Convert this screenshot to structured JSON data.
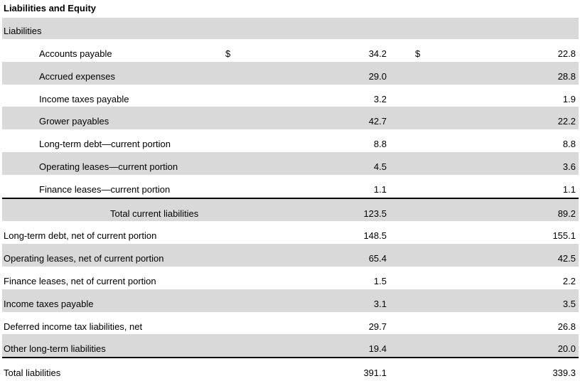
{
  "title": "Liabilities and Equity",
  "section": "Liabilities",
  "rows": [
    {
      "label": "Accounts payable",
      "indent": 1,
      "cur": "$",
      "v1": "34.2",
      "v2": "22.8"
    },
    {
      "label": "Accrued expenses",
      "indent": 1,
      "v1": "29.0",
      "v2": "28.8"
    },
    {
      "label": "Income taxes payable",
      "indent": 1,
      "v1": "3.2",
      "v2": "1.9"
    },
    {
      "label": "Grower payables",
      "indent": 1,
      "v1": "42.7",
      "v2": "22.2"
    },
    {
      "label": "Long-term debt—current portion",
      "indent": 1,
      "v1": "8.8",
      "v2": "8.8"
    },
    {
      "label": "Operating leases—current portion",
      "indent": 1,
      "v1": "4.5",
      "v2": "3.6"
    },
    {
      "label": "Finance leases—current portion",
      "indent": 1,
      "v1": "1.1",
      "v2": "1.1"
    },
    {
      "label": "Total current liabilities",
      "indent": 2,
      "v1": "123.5",
      "v2": "89.2",
      "topline": true
    },
    {
      "label": "Long-term debt, net of current portion",
      "indent": 0,
      "v1": "148.5",
      "v2": "155.1"
    },
    {
      "label": "Operating leases, net of current portion",
      "indent": 0,
      "v1": "65.4",
      "v2": "42.5"
    },
    {
      "label": "Finance leases, net of current portion",
      "indent": 0,
      "v1": "1.5",
      "v2": "2.2"
    },
    {
      "label": "Income taxes payable",
      "indent": 0,
      "v1": "3.1",
      "v2": "3.5"
    },
    {
      "label": "Deferred income tax liabilities, net",
      "indent": 0,
      "v1": "29.7",
      "v2": "26.8"
    },
    {
      "label": "Other long-term liabilities",
      "indent": 0,
      "v1": "19.4",
      "v2": "20.0"
    },
    {
      "label": "Total liabilities",
      "indent": 0,
      "v1": "391.1",
      "v2": "339.3",
      "topline": true
    }
  ]
}
